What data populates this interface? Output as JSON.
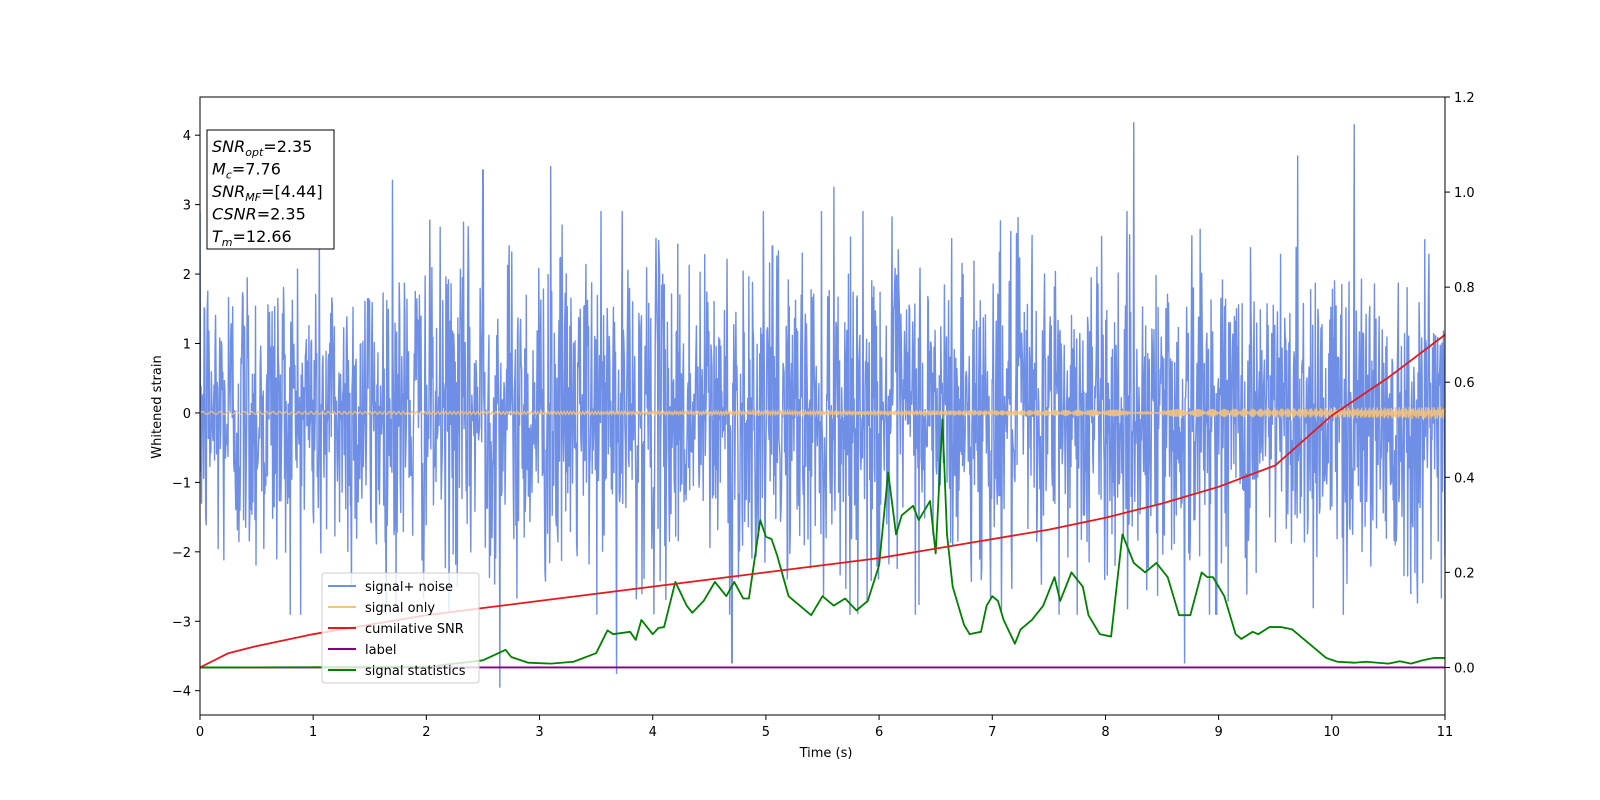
{
  "chart_data": {
    "type": "line",
    "xlabel": "Time (s)",
    "ylabel": "Whitened strain",
    "xlim": [
      0,
      11
    ],
    "ylim_left": [
      -4.35,
      4.55
    ],
    "ylim_right": [
      -0.1,
      1.2
    ],
    "x_ticks": [
      0,
      1,
      2,
      3,
      4,
      5,
      6,
      7,
      8,
      9,
      10,
      11
    ],
    "y_left_ticks": [
      -4,
      -3,
      -2,
      -1,
      0,
      1,
      2,
      3,
      4
    ],
    "y_right_ticks": [
      0.0,
      0.2,
      0.4,
      0.6,
      0.8,
      1.0,
      1.2
    ],
    "grid": false,
    "legend_position": "lower-left",
    "colors": {
      "signal_noise": "#6f8fe6",
      "signal_only": "#f5c27a",
      "cumulative_snr": "#e31a1c",
      "label": "#800080",
      "signal_statistics": "#008000"
    },
    "series": [
      {
        "name": "signal+ noise",
        "axis": "left",
        "noise_amplitude_typical": 2.3,
        "noise_peak_values": [
          {
            "x": 1.7,
            "y": 3.35
          },
          {
            "x": 2.5,
            "y": 3.5
          },
          {
            "x": 3.1,
            "y": 3.55
          },
          {
            "x": 5.6,
            "y": 3.25
          },
          {
            "x": 8.25,
            "y": 4.18
          },
          {
            "x": 10.2,
            "y": 4.15
          },
          {
            "x": 9.7,
            "y": 3.7
          },
          {
            "x": 2.65,
            "y": -3.95
          },
          {
            "x": 3.68,
            "y": -3.75
          },
          {
            "x": 4.7,
            "y": -3.6
          },
          {
            "x": 8.7,
            "y": -3.6
          }
        ]
      },
      {
        "name": "signal only",
        "axis": "left",
        "amplitude_start": 0.02,
        "amplitude_end": 0.09
      },
      {
        "name": "cumilative SNR",
        "axis": "right",
        "x": [
          0,
          0.25,
          0.5,
          1,
          1.5,
          2,
          2.5,
          3,
          3.5,
          4,
          4.5,
          5,
          5.5,
          6,
          6.5,
          7,
          7.5,
          8,
          8.5,
          9,
          9.5,
          10,
          10.5,
          11
        ],
        "values": [
          0.0,
          0.03,
          0.045,
          0.07,
          0.09,
          0.11,
          0.125,
          0.14,
          0.155,
          0.17,
          0.185,
          0.2,
          0.215,
          0.23,
          0.25,
          0.27,
          0.29,
          0.315,
          0.345,
          0.38,
          0.425,
          0.53,
          0.61,
          0.7
        ]
      },
      {
        "name": "label",
        "axis": "right",
        "x": [
          0,
          11
        ],
        "values": [
          0.0,
          0.0
        ]
      },
      {
        "name": "signal statistics",
        "axis": "right",
        "x": [
          0,
          2.0,
          2.5,
          2.7,
          2.75,
          2.9,
          3.1,
          3.3,
          3.5,
          3.6,
          3.65,
          3.8,
          3.85,
          3.9,
          4.0,
          4.05,
          4.1,
          4.2,
          4.3,
          4.35,
          4.45,
          4.55,
          4.65,
          4.72,
          4.8,
          4.85,
          4.95,
          5.0,
          5.05,
          5.1,
          5.2,
          5.3,
          5.4,
          5.5,
          5.6,
          5.7,
          5.8,
          5.9,
          6.0,
          6.08,
          6.15,
          6.2,
          6.25,
          6.3,
          6.35,
          6.45,
          6.5,
          6.56,
          6.6,
          6.65,
          6.75,
          6.8,
          6.9,
          6.95,
          7.0,
          7.05,
          7.1,
          7.2,
          7.25,
          7.35,
          7.45,
          7.55,
          7.6,
          7.7,
          7.8,
          7.85,
          7.95,
          8.05,
          8.15,
          8.25,
          8.35,
          8.45,
          8.55,
          8.65,
          8.75,
          8.85,
          8.9,
          8.95,
          9.05,
          9.15,
          9.2,
          9.3,
          9.35,
          9.45,
          9.55,
          9.65,
          9.75,
          9.85,
          9.95,
          10.05,
          10.2,
          10.3,
          10.5,
          10.6,
          10.7,
          10.8,
          10.9,
          11.0
        ],
        "values": [
          0.0,
          0.001,
          0.015,
          0.037,
          0.022,
          0.01,
          0.008,
          0.012,
          0.03,
          0.078,
          0.07,
          0.075,
          0.058,
          0.1,
          0.07,
          0.083,
          0.085,
          0.18,
          0.13,
          0.115,
          0.14,
          0.18,
          0.15,
          0.18,
          0.145,
          0.145,
          0.31,
          0.275,
          0.27,
          0.235,
          0.15,
          0.13,
          0.11,
          0.15,
          0.13,
          0.145,
          0.12,
          0.14,
          0.215,
          0.41,
          0.28,
          0.32,
          0.33,
          0.34,
          0.31,
          0.35,
          0.24,
          0.522,
          0.28,
          0.17,
          0.09,
          0.07,
          0.075,
          0.13,
          0.15,
          0.14,
          0.1,
          0.05,
          0.08,
          0.1,
          0.13,
          0.19,
          0.14,
          0.2,
          0.17,
          0.11,
          0.07,
          0.065,
          0.28,
          0.22,
          0.2,
          0.22,
          0.19,
          0.11,
          0.11,
          0.2,
          0.19,
          0.19,
          0.15,
          0.07,
          0.06,
          0.075,
          0.07,
          0.085,
          0.085,
          0.08,
          0.06,
          0.04,
          0.02,
          0.012,
          0.01,
          0.012,
          0.008,
          0.013,
          0.008,
          0.015,
          0.02,
          0.02
        ]
      }
    ],
    "annotation_box": {
      "lines": [
        {
          "base": "SNR",
          "sub": "opt",
          "rest": "=2.35"
        },
        {
          "base": "M",
          "sub": "c",
          "rest": "=7.76"
        },
        {
          "base": "SNR",
          "sub": "MF",
          "rest": "=[4.44]"
        },
        {
          "base": "CSNR",
          "sub": "",
          "rest": "=2.35"
        },
        {
          "base": "T",
          "sub": "m",
          "rest": "=12.66"
        }
      ]
    }
  }
}
